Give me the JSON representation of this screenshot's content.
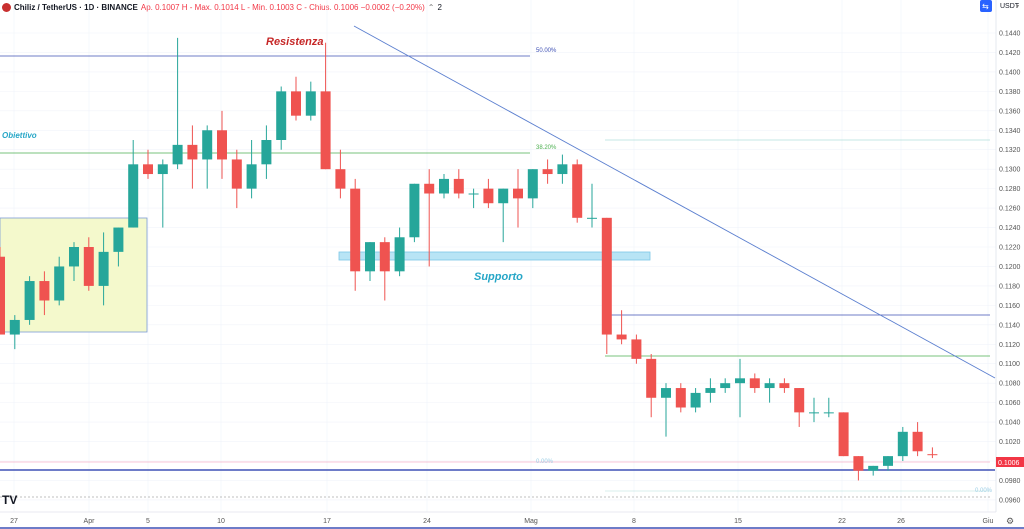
{
  "header": {
    "symbol": "Chiliz / TetherUS · 1D · BINANCE",
    "ohlc": "Ap. 0.1007  H - Max. 0.1014  L - Min. 0.1003  C - Chius. 0.1006  −0.0002 (−0.20%)",
    "indicator_count": "2"
  },
  "currency": "USDT",
  "current_price": "0.1006",
  "colors": {
    "up": "#26a69a",
    "down": "#ef5350",
    "trendline": "#5b7fcf",
    "support": "#b8e4f5",
    "target_box": "#f4f9cc"
  },
  "annotations": {
    "resistance": "Resistenza",
    "support": "Supporto",
    "target": "Obiettivo"
  },
  "fib_labels": [
    "50.00%",
    "38.20%",
    "0.00%",
    "0.00%"
  ],
  "chart_data": {
    "type": "candlestick",
    "y_ticks": [
      "0.1440",
      "0.1420",
      "0.1400",
      "0.1380",
      "0.1360",
      "0.1340",
      "0.1320",
      "0.1300",
      "0.1280",
      "0.1260",
      "0.1240",
      "0.1220",
      "0.1200",
      "0.1180",
      "0.1160",
      "0.1140",
      "0.1120",
      "0.1100",
      "0.1080",
      "0.1060",
      "0.1040",
      "0.1020",
      "0.1000",
      "0.0980",
      "0.0960"
    ],
    "x_ticks": [
      "27",
      "Apr",
      "5",
      "10",
      "17",
      "24",
      "Mag",
      "8",
      "15",
      "22",
      "26",
      "Giu"
    ],
    "ylim": [
      0.0955,
      0.1445
    ],
    "candles": [
      [
        0.121,
        0.122,
        0.113,
        0.113
      ],
      [
        0.113,
        0.115,
        0.1115,
        0.1145
      ],
      [
        0.1145,
        0.119,
        0.114,
        0.1185
      ],
      [
        0.1185,
        0.1195,
        0.115,
        0.1165
      ],
      [
        0.1165,
        0.121,
        0.116,
        0.12
      ],
      [
        0.12,
        0.1225,
        0.1185,
        0.122
      ],
      [
        0.122,
        0.123,
        0.1175,
        0.118
      ],
      [
        0.118,
        0.1235,
        0.116,
        0.1215
      ],
      [
        0.1215,
        0.124,
        0.12,
        0.124
      ],
      [
        0.124,
        0.133,
        0.124,
        0.1305
      ],
      [
        0.1305,
        0.132,
        0.129,
        0.1295
      ],
      [
        0.1295,
        0.131,
        0.124,
        0.1305
      ],
      [
        0.1305,
        0.1435,
        0.13,
        0.1325
      ],
      [
        0.1325,
        0.1345,
        0.128,
        0.131
      ],
      [
        0.131,
        0.1345,
        0.128,
        0.134
      ],
      [
        0.134,
        0.136,
        0.129,
        0.131
      ],
      [
        0.131,
        0.132,
        0.126,
        0.128
      ],
      [
        0.128,
        0.133,
        0.127,
        0.1305
      ],
      [
        0.1305,
        0.1345,
        0.129,
        0.133
      ],
      [
        0.133,
        0.1385,
        0.132,
        0.138
      ],
      [
        0.138,
        0.1395,
        0.135,
        0.1355
      ],
      [
        0.1355,
        0.139,
        0.135,
        0.138
      ],
      [
        0.138,
        0.143,
        0.13,
        0.13
      ],
      [
        0.13,
        0.132,
        0.127,
        0.128
      ],
      [
        0.128,
        0.129,
        0.1175,
        0.1195
      ],
      [
        0.1195,
        0.1225,
        0.1185,
        0.1225
      ],
      [
        0.1225,
        0.123,
        0.1165,
        0.1195
      ],
      [
        0.1195,
        0.124,
        0.119,
        0.123
      ],
      [
        0.123,
        0.1285,
        0.1225,
        0.1285
      ],
      [
        0.1285,
        0.13,
        0.12,
        0.1275
      ],
      [
        0.1275,
        0.1295,
        0.127,
        0.129
      ],
      [
        0.129,
        0.13,
        0.127,
        0.1275
      ],
      [
        0.1275,
        0.128,
        0.126,
        0.1275
      ],
      [
        0.128,
        0.129,
        0.126,
        0.1265
      ],
      [
        0.1265,
        0.128,
        0.1225,
        0.128
      ],
      [
        0.128,
        0.13,
        0.124,
        0.127
      ],
      [
        0.127,
        0.13,
        0.126,
        0.13
      ],
      [
        0.13,
        0.131,
        0.1285,
        0.1295
      ],
      [
        0.1295,
        0.1315,
        0.1285,
        0.1305
      ],
      [
        0.1305,
        0.131,
        0.1245,
        0.125
      ],
      [
        0.125,
        0.1285,
        0.124,
        0.125
      ],
      [
        0.125,
        0.125,
        0.111,
        0.113
      ],
      [
        0.113,
        0.1155,
        0.112,
        0.1125
      ],
      [
        0.1125,
        0.113,
        0.11,
        0.1105
      ],
      [
        0.1105,
        0.111,
        0.1045,
        0.1065
      ],
      [
        0.1065,
        0.108,
        0.1025,
        0.1075
      ],
      [
        0.1075,
        0.108,
        0.105,
        0.1055
      ],
      [
        0.1055,
        0.1075,
        0.105,
        0.107
      ],
      [
        0.107,
        0.1085,
        0.106,
        0.1075
      ],
      [
        0.1075,
        0.1085,
        0.107,
        0.108
      ],
      [
        0.108,
        0.1105,
        0.1045,
        0.1085
      ],
      [
        0.1085,
        0.109,
        0.107,
        0.1075
      ],
      [
        0.1075,
        0.1085,
        0.106,
        0.108
      ],
      [
        0.108,
        0.1085,
        0.107,
        0.1075
      ],
      [
        0.1075,
        0.1075,
        0.1035,
        0.105
      ],
      [
        0.105,
        0.1065,
        0.104,
        0.105
      ],
      [
        0.105,
        0.1065,
        0.1045,
        0.105
      ],
      [
        0.105,
        0.105,
        0.1005,
        0.1005
      ],
      [
        0.1005,
        0.1005,
        0.098,
        0.099
      ],
      [
        0.099,
        0.0995,
        0.0985,
        0.0995
      ],
      [
        0.0995,
        0.1005,
        0.099,
        0.1005
      ],
      [
        0.1005,
        0.1035,
        0.1,
        0.103
      ],
      [
        0.103,
        0.104,
        0.1005,
        0.101
      ],
      [
        0.1007,
        0.1014,
        0.1003,
        0.1006
      ]
    ]
  }
}
